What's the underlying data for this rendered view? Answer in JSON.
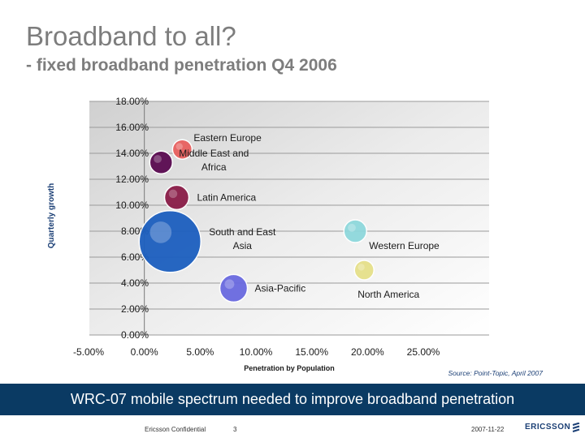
{
  "header": {
    "title": "Broadband to all?",
    "subtitle": "- fixed broadband penetration Q4 2006"
  },
  "chart_data": {
    "type": "bubble",
    "xlabel": "Penetration by Population",
    "ylabel": "Quarterly growth",
    "xlim": [
      -5,
      25
    ],
    "ylim": [
      0,
      18
    ],
    "x_ticks": [
      -5,
      0,
      5,
      10,
      15,
      20,
      25
    ],
    "y_ticks": [
      0,
      2,
      4,
      6,
      8,
      10,
      12,
      14,
      16,
      18
    ],
    "x_tick_labels": [
      "-5.00%",
      "0.00%",
      "5.00%",
      "10.00%",
      "15.00%",
      "20.00%",
      "25.00%"
    ],
    "y_tick_labels": [
      "0.00%",
      "2.00%",
      "4.00%",
      "6.00%",
      "8.00%",
      "10.00%",
      "12.00%",
      "14.00%",
      "16.00%",
      "18.00%"
    ],
    "grid": "horizontal",
    "series": [
      {
        "name": "Eastern Europe",
        "x": 3.4,
        "y": 14.3,
        "size": 12,
        "color": "#e8605f",
        "label_lines": [
          "Eastern Europe"
        ]
      },
      {
        "name": "Middle East and Africa",
        "x": 1.5,
        "y": 13.3,
        "size": 14,
        "color": "#5a0a50",
        "label_lines": [
          "Middle East and",
          "Africa"
        ]
      },
      {
        "name": "Latin America",
        "x": 2.9,
        "y": 10.6,
        "size": 15,
        "color": "#8a1c48",
        "label_lines": [
          "Latin America"
        ]
      },
      {
        "name": "South and East Asia",
        "x": 2.3,
        "y": 7.2,
        "size": 38,
        "color": "#1c5fbf",
        "label_lines": [
          "South and East",
          "Asia"
        ]
      },
      {
        "name": "Asia-Pacific",
        "x": 8.0,
        "y": 3.6,
        "size": 17,
        "color": "#6a6ae0",
        "label_lines": [
          "Asia-Pacific"
        ]
      },
      {
        "name": "Western Europe",
        "x": 18.9,
        "y": 8.0,
        "size": 14,
        "color": "#8fd8dc",
        "label_lines": [
          "Western Europe"
        ]
      },
      {
        "name": "North America",
        "x": 19.7,
        "y": 5.0,
        "size": 12,
        "color": "#e6e08a",
        "label_lines": [
          "North America"
        ]
      }
    ]
  },
  "source": "Source: Point-Topic, April 2007",
  "banner": "WRC-07 mobile spectrum needed to improve broadband penetration",
  "footer": {
    "confidential": "Ericsson Confidential",
    "page": "3",
    "date": "2007-11-22",
    "logo": "ERICSSON"
  },
  "colors": {
    "banner": "#0a3a63",
    "title": "#7d7d7d",
    "axis_label": "#1b3f75"
  }
}
